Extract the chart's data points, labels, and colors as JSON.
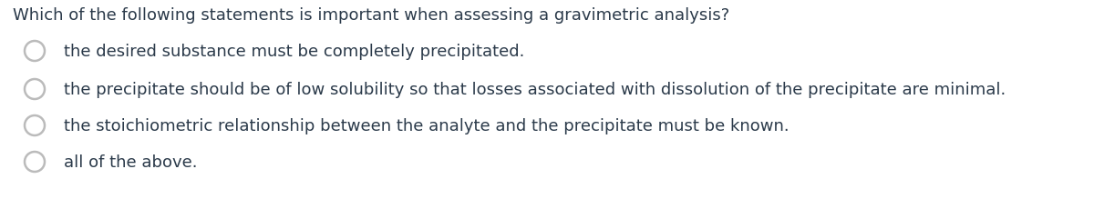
{
  "background_color": "#ffffff",
  "question": "Which of the following statements is important when assessing a gravimetric analysis?",
  "options": [
    "the desired substance must be completely precipitated.",
    "the precipitate should be of low solubility so that losses associated with dissolution of the precipitate are minimal.",
    "the stoichiometric relationship between the analyte and the precipitate must be known.",
    "all of the above."
  ],
  "question_fontsize": 13.0,
  "option_fontsize": 13.0,
  "text_color": "#2b3a4a",
  "circle_edge_color": "#bbbbbb",
  "circle_linewidth": 1.8,
  "figsize": [
    12.0,
    2.19
  ],
  "dpi": 100
}
